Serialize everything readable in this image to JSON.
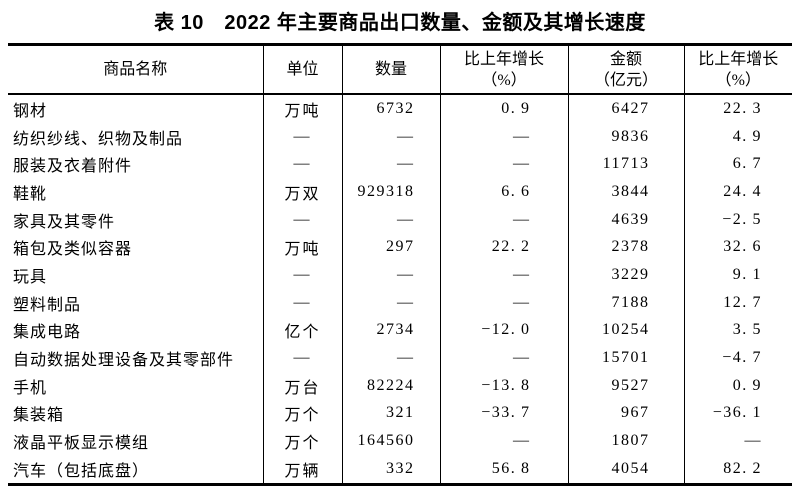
{
  "title": "表 10　2022 年主要商品出口数量、金额及其增长速度",
  "colors": {
    "text": "#000000",
    "border": "#000000",
    "background": "#ffffff"
  },
  "table": {
    "columns": [
      {
        "label": "商品名称",
        "sub": ""
      },
      {
        "label": "单位",
        "sub": ""
      },
      {
        "label": "数量",
        "sub": ""
      },
      {
        "label": "比上年增长",
        "sub": "（%）"
      },
      {
        "label": "金额",
        "sub": "（亿元）"
      },
      {
        "label": "比上年增长",
        "sub": "（%）"
      }
    ],
    "rows": [
      {
        "name": "钢材",
        "unit": "万吨",
        "quantity": "6732",
        "quantity_growth": "0.9",
        "amount": "6427",
        "amount_growth": "22.3"
      },
      {
        "name": "纺织纱线、织物及制品",
        "unit": "—",
        "quantity": "—",
        "quantity_growth": "—",
        "amount": "9836",
        "amount_growth": "4.9"
      },
      {
        "name": "服装及衣着附件",
        "unit": "—",
        "quantity": "—",
        "quantity_growth": "—",
        "amount": "11713",
        "amount_growth": "6.7"
      },
      {
        "name": "鞋靴",
        "unit": "万双",
        "quantity": "929318",
        "quantity_growth": "6.6",
        "amount": "3844",
        "amount_growth": "24.4"
      },
      {
        "name": "家具及其零件",
        "unit": "—",
        "quantity": "—",
        "quantity_growth": "—",
        "amount": "4639",
        "amount_growth": "-2.5"
      },
      {
        "name": "箱包及类似容器",
        "unit": "万吨",
        "quantity": "297",
        "quantity_growth": "22.2",
        "amount": "2378",
        "amount_growth": "32.6"
      },
      {
        "name": "玩具",
        "unit": "—",
        "quantity": "—",
        "quantity_growth": "—",
        "amount": "3229",
        "amount_growth": "9.1"
      },
      {
        "name": "塑料制品",
        "unit": "—",
        "quantity": "—",
        "quantity_growth": "—",
        "amount": "7188",
        "amount_growth": "12.7"
      },
      {
        "name": "集成电路",
        "unit": "亿个",
        "quantity": "2734",
        "quantity_growth": "-12.0",
        "amount": "10254",
        "amount_growth": "3.5"
      },
      {
        "name": "自动数据处理设备及其零部件",
        "unit": "—",
        "quantity": "—",
        "quantity_growth": "—",
        "amount": "15701",
        "amount_growth": "-4.7"
      },
      {
        "name": "手机",
        "unit": "万台",
        "quantity": "82224",
        "quantity_growth": "-13.8",
        "amount": "9527",
        "amount_growth": "0.9"
      },
      {
        "name": "集装箱",
        "unit": "万个",
        "quantity": "321",
        "quantity_growth": "-33.7",
        "amount": "967",
        "amount_growth": "-36.1"
      },
      {
        "name": "液晶平板显示模组",
        "unit": "万个",
        "quantity": "164560",
        "quantity_growth": "—",
        "amount": "1807",
        "amount_growth": "—"
      },
      {
        "name": "汽车（包括底盘）",
        "unit": "万辆",
        "quantity": "332",
        "quantity_growth": "56.8",
        "amount": "4054",
        "amount_growth": "82.2"
      }
    ]
  }
}
